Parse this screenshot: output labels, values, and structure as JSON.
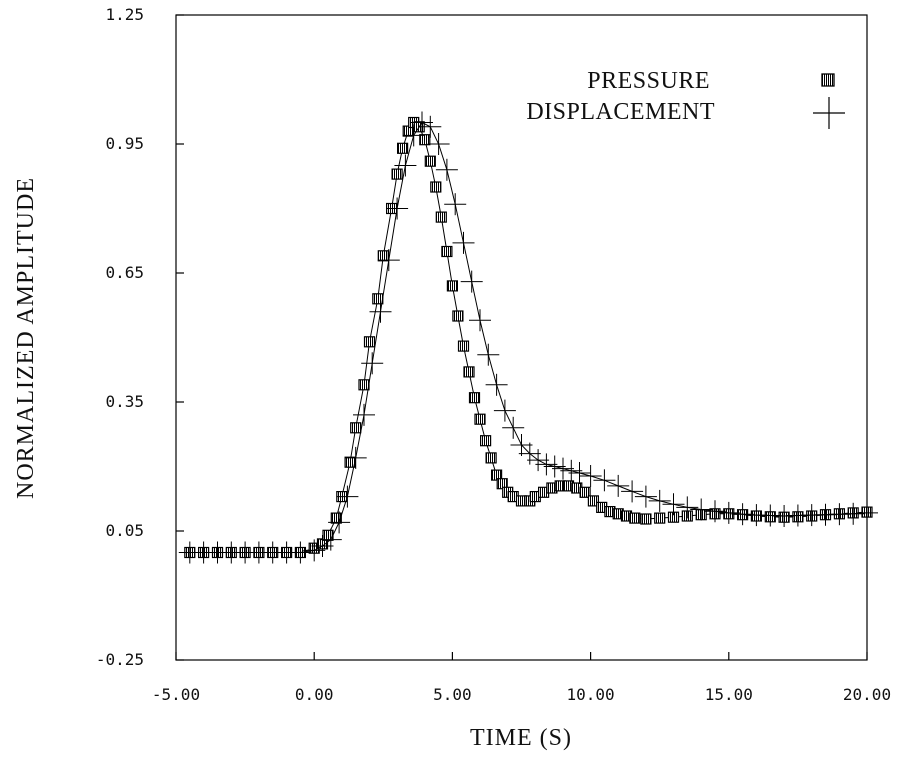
{
  "chart_data": {
    "type": "scatter",
    "title": "",
    "xlabel": "TIME (S)",
    "ylabel": "NORMALIZED AMPLITUDE",
    "xlim": [
      -5.0,
      20.0
    ],
    "ylim": [
      -0.25,
      1.25
    ],
    "x_ticks": [
      "-5.00",
      "0.00",
      "5.00",
      "10.00",
      "15.00",
      "20.00"
    ],
    "y_ticks": [
      "-0.25",
      "0.05",
      "0.35",
      "0.65",
      "0.95",
      "1.25"
    ],
    "grid": false,
    "legend_position": "top-right",
    "series": [
      {
        "name": "PRESSURE",
        "marker": "filled-square",
        "color": "#000000",
        "x": [
          -4.5,
          -4.0,
          -3.5,
          -3.0,
          -2.5,
          -2.0,
          -1.5,
          -1.0,
          -0.5,
          0.0,
          0.3,
          0.5,
          0.8,
          1.0,
          1.3,
          1.5,
          1.8,
          2.0,
          2.3,
          2.5,
          2.8,
          3.0,
          3.2,
          3.4,
          3.6,
          3.8,
          4.0,
          4.2,
          4.4,
          4.6,
          4.8,
          5.0,
          5.2,
          5.4,
          5.6,
          5.8,
          6.0,
          6.2,
          6.4,
          6.6,
          6.8,
          7.0,
          7.2,
          7.5,
          7.8,
          8.0,
          8.3,
          8.6,
          8.9,
          9.2,
          9.5,
          9.8,
          10.1,
          10.4,
          10.7,
          11.0,
          11.3,
          11.6,
          12.0,
          12.5,
          13.0,
          13.5,
          14.0,
          14.5,
          15.0,
          15.5,
          16.0,
          16.5,
          17.0,
          17.5,
          18.0,
          18.5,
          19.0,
          19.5,
          20.0
        ],
        "values": [
          0.0,
          0.0,
          0.0,
          0.0,
          0.0,
          0.0,
          0.0,
          0.0,
          0.0,
          0.01,
          0.02,
          0.04,
          0.08,
          0.13,
          0.21,
          0.29,
          0.39,
          0.49,
          0.59,
          0.69,
          0.8,
          0.88,
          0.94,
          0.98,
          1.0,
          0.99,
          0.96,
          0.91,
          0.85,
          0.78,
          0.7,
          0.62,
          0.55,
          0.48,
          0.42,
          0.36,
          0.31,
          0.26,
          0.22,
          0.18,
          0.16,
          0.14,
          0.13,
          0.12,
          0.12,
          0.13,
          0.14,
          0.15,
          0.155,
          0.155,
          0.15,
          0.14,
          0.12,
          0.105,
          0.095,
          0.09,
          0.085,
          0.08,
          0.078,
          0.08,
          0.082,
          0.085,
          0.088,
          0.09,
          0.09,
          0.088,
          0.085,
          0.083,
          0.082,
          0.083,
          0.085,
          0.088,
          0.09,
          0.092,
          0.094
        ]
      },
      {
        "name": "DISPLACEMENT",
        "marker": "plus",
        "color": "#000000",
        "x": [
          -4.5,
          -4.0,
          -3.5,
          -3.0,
          -2.5,
          -2.0,
          -1.5,
          -1.0,
          -0.5,
          0.0,
          0.3,
          0.6,
          0.9,
          1.2,
          1.5,
          1.8,
          2.1,
          2.4,
          2.7,
          3.0,
          3.3,
          3.6,
          3.9,
          4.2,
          4.5,
          4.8,
          5.1,
          5.4,
          5.7,
          6.0,
          6.3,
          6.6,
          6.9,
          7.2,
          7.5,
          7.8,
          8.1,
          8.4,
          8.7,
          9.0,
          9.3,
          9.6,
          10.0,
          10.5,
          11.0,
          11.5,
          12.0,
          12.5,
          13.0,
          13.5,
          14.0,
          14.5,
          15.0,
          15.5,
          16.0,
          16.5,
          17.0,
          17.5,
          18.0,
          18.5,
          19.0,
          19.5,
          20.0
        ],
        "values": [
          0.0,
          0.0,
          0.0,
          0.0,
          0.0,
          0.0,
          0.0,
          0.0,
          0.0,
          0.005,
          0.015,
          0.03,
          0.07,
          0.13,
          0.22,
          0.32,
          0.44,
          0.56,
          0.68,
          0.8,
          0.9,
          0.97,
          1.0,
          0.99,
          0.95,
          0.89,
          0.81,
          0.72,
          0.63,
          0.54,
          0.46,
          0.39,
          0.33,
          0.29,
          0.25,
          0.23,
          0.215,
          0.205,
          0.2,
          0.195,
          0.19,
          0.185,
          0.178,
          0.168,
          0.155,
          0.142,
          0.13,
          0.12,
          0.112,
          0.105,
          0.1,
          0.096,
          0.092,
          0.089,
          0.087,
          0.086,
          0.085,
          0.086,
          0.087,
          0.088,
          0.089,
          0.09,
          0.092
        ]
      }
    ]
  }
}
